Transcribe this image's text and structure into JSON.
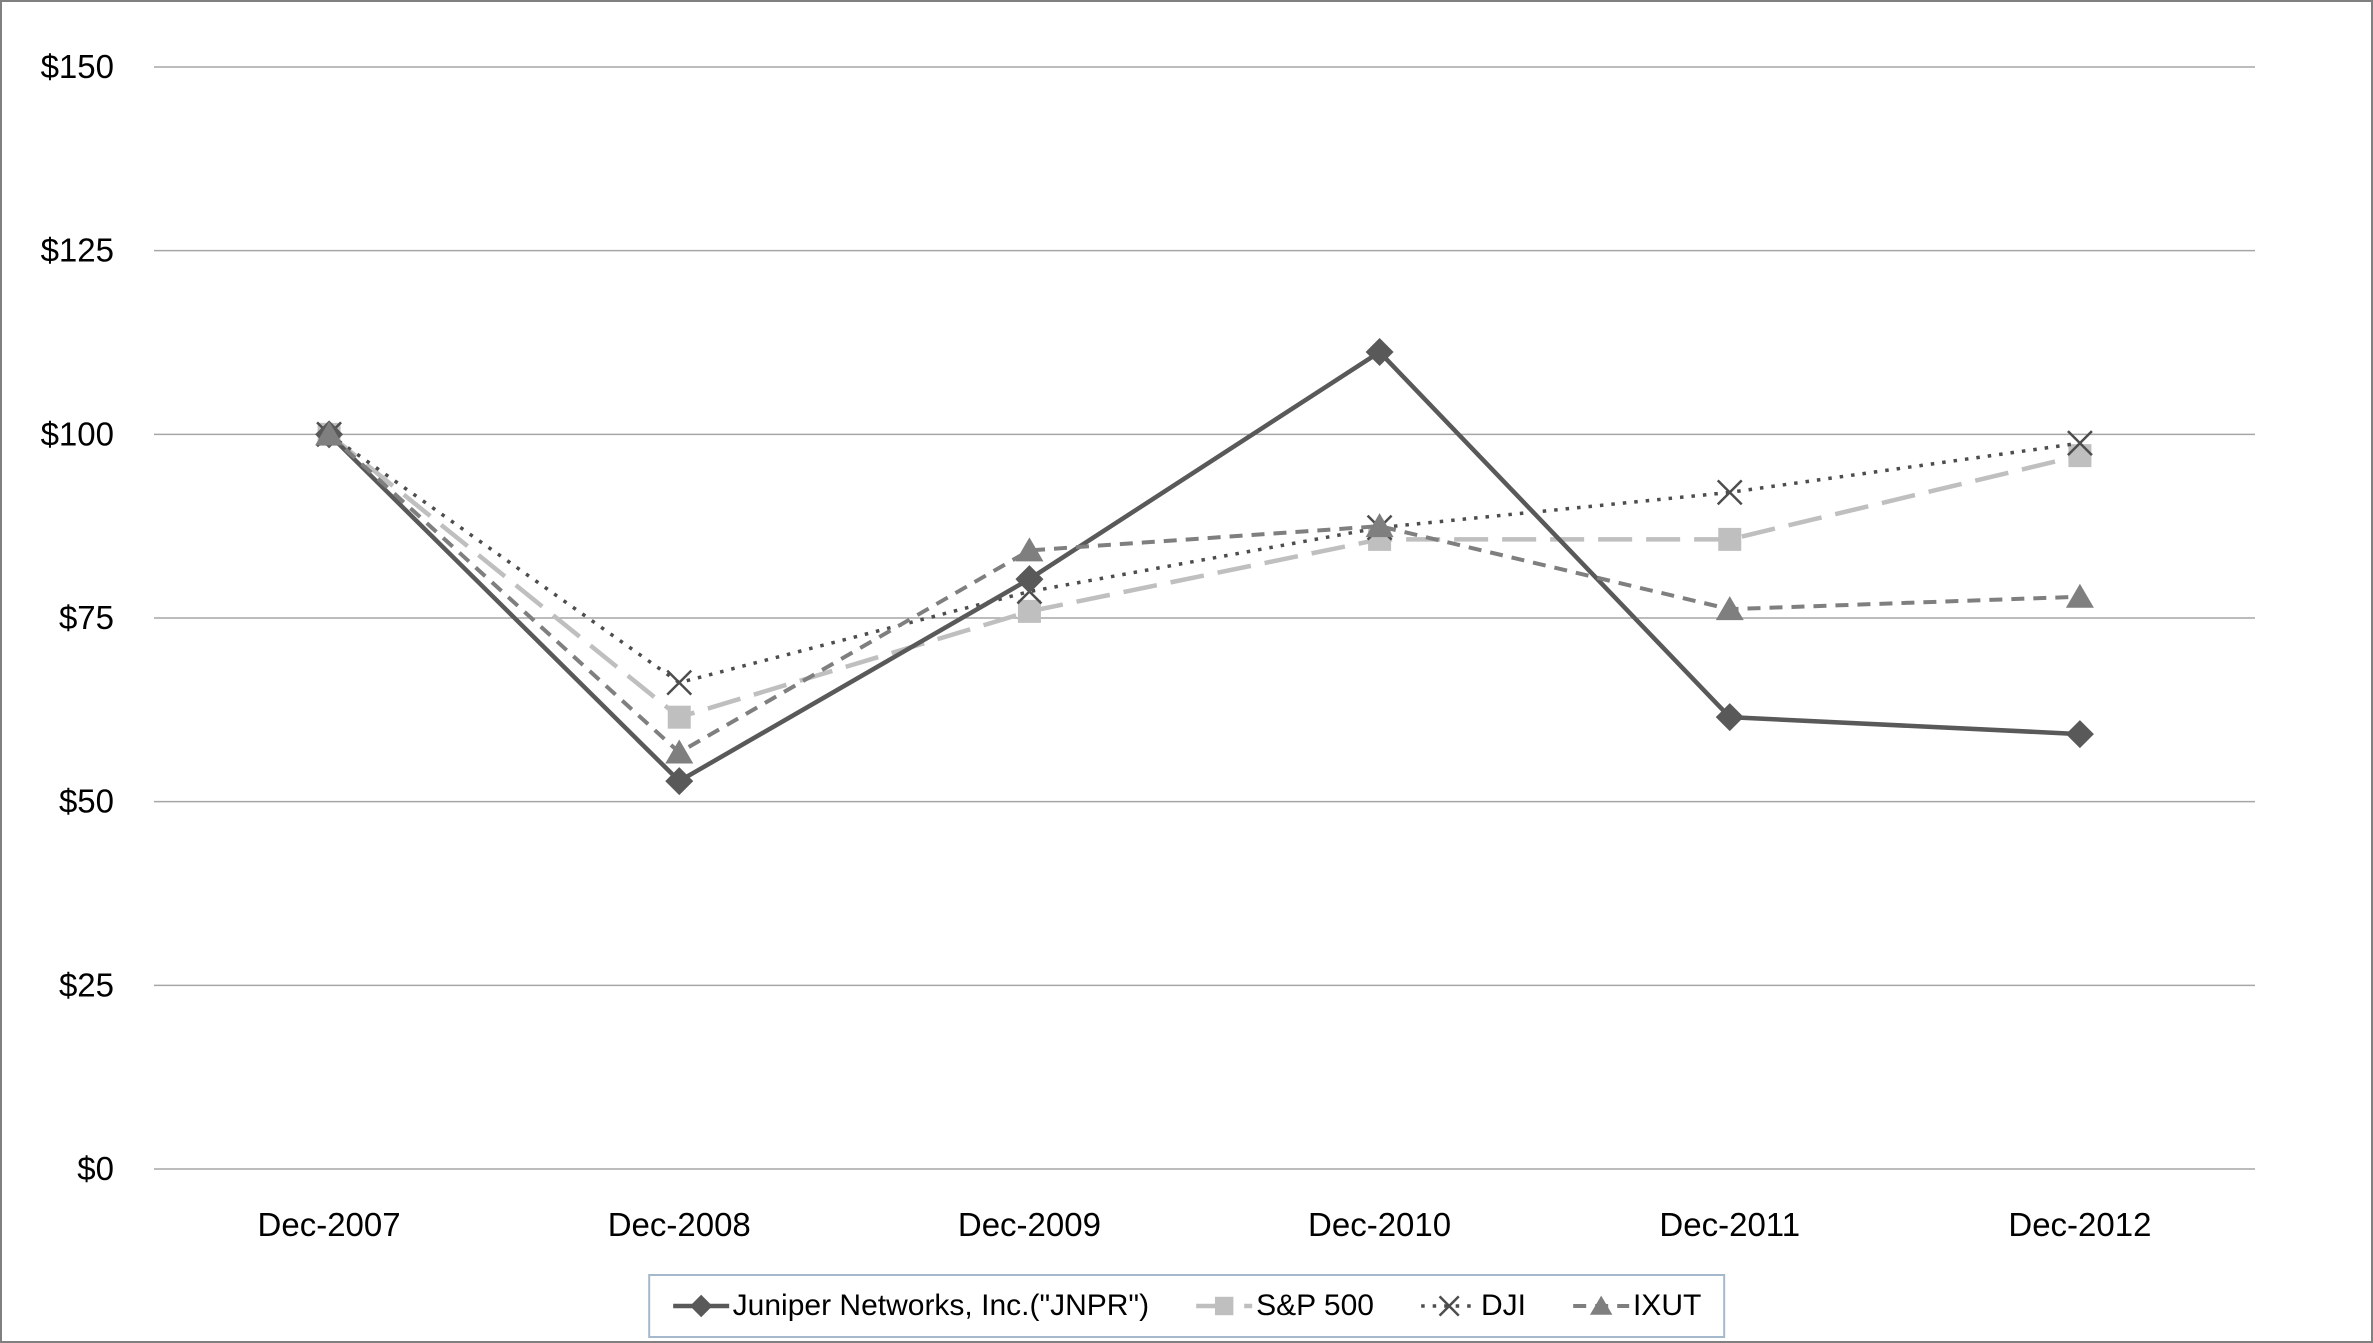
{
  "figure": {
    "background": "#ffffff",
    "border_color": "#808080",
    "title": ""
  },
  "chart_data": {
    "type": "line",
    "title": "",
    "xlabel": "",
    "ylabel": "",
    "categories": [
      "Dec-2007",
      "Dec-2008",
      "Dec-2009",
      "Dec-2010",
      "Dec-2011",
      "Dec-2012"
    ],
    "series": [
      {
        "name": "Juniper Networks, Inc.(\"JNPR\")",
        "values": [
          100,
          52.8,
          80.3,
          111.2,
          61.5,
          59.2
        ],
        "color": "#595959",
        "line_style": "solid",
        "line_width": 4.5,
        "marker": "diamond"
      },
      {
        "name": "S&P 500",
        "values": [
          100,
          61.5,
          75.9,
          85.7,
          85.7,
          97.1
        ],
        "color": "#bfbfbf",
        "line_style": "long-dash",
        "line_width": 4.5,
        "marker": "square"
      },
      {
        "name": "DJI",
        "values": [
          100,
          66.2,
          78.6,
          87.3,
          92.1,
          98.8
        ],
        "color": "#4d4d4d",
        "line_style": "dotted",
        "line_width": 3.5,
        "marker": "x"
      },
      {
        "name": "IXUT",
        "values": [
          100,
          56.7,
          84.2,
          87.5,
          76.2,
          77.9
        ],
        "color": "#7f7f7f",
        "line_style": "dash",
        "line_width": 4,
        "marker": "triangle"
      }
    ],
    "ylim": [
      0,
      150
    ],
    "ytick_step": 25,
    "ytick_labels": [
      "$0",
      "$25",
      "$50",
      "$75",
      "$100",
      "$125",
      "$150"
    ],
    "grid": "horizontal",
    "gridline_color": "#a6a6a6",
    "axis_text_color": "#000000",
    "legend_position": "bottom-center",
    "legend_border_color": "#a6b9cc"
  }
}
